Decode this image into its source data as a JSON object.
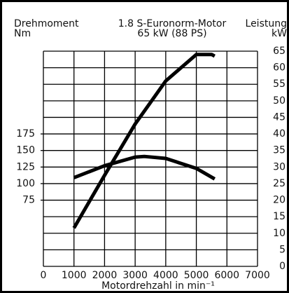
{
  "chart_data": {
    "type": "line",
    "title": "1.8 S-Euronorm-Motor",
    "subtitle": "65 kW (88 PS)",
    "ylabel": "Drehmoment",
    "yunit": "Nm",
    "y2label": "Leistung",
    "y2unit": "kW",
    "xlabel": "Motordrehzahl in min⁻¹",
    "xlim": [
      0,
      7000
    ],
    "xticks": [
      0,
      1000,
      2000,
      3000,
      4000,
      5000,
      6000,
      7000
    ],
    "ylim": [
      -25,
      300
    ],
    "yticks": [
      75,
      100,
      125,
      150,
      175
    ],
    "y2lim": [
      0,
      65
    ],
    "y2ticks": [
      0,
      5,
      10,
      15,
      20,
      25,
      30,
      35,
      40,
      45,
      50,
      55,
      60,
      65
    ],
    "grid": true,
    "series": [
      {
        "color": "#000000",
        "axis": "y",
        "x": [
          1000,
          2000,
          3000,
          3300,
          4000,
          5000,
          5600
        ],
        "values": [
          109,
          127,
          140,
          141,
          138,
          123,
          107
        ]
      },
      {
        "color": "#000000",
        "axis": "y2",
        "x": [
          1000,
          2000,
          3000,
          4000,
          5000,
          5500,
          5600
        ],
        "values": [
          11.6,
          27.5,
          43,
          56,
          64,
          64,
          63.5
        ]
      }
    ]
  }
}
